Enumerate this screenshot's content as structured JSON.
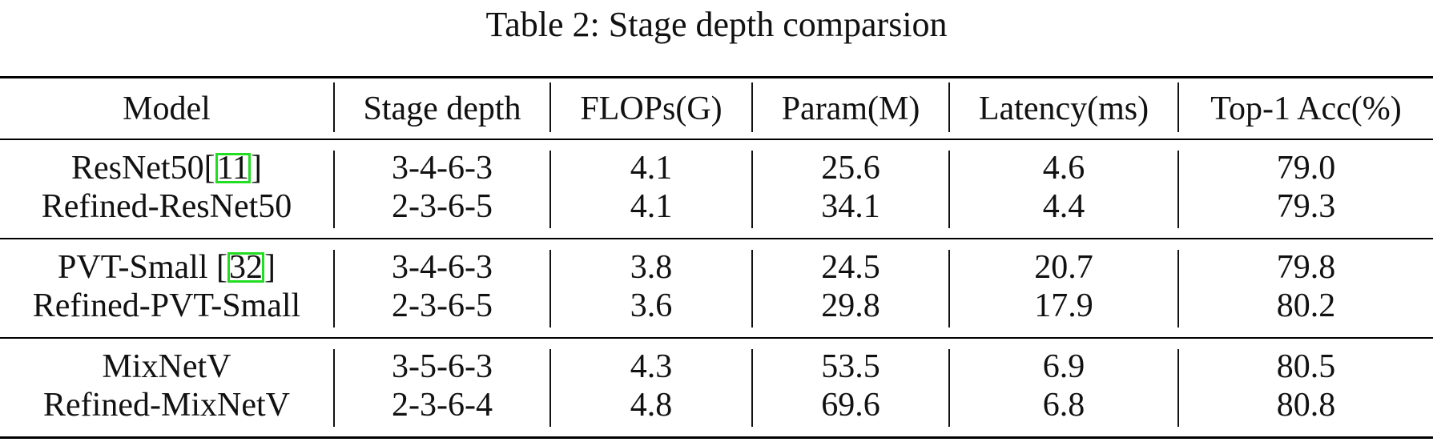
{
  "caption": "Table 2: Stage depth comparsion",
  "table": {
    "headers": [
      "Model",
      "Stage depth",
      "FLOPs(G)",
      "Param(M)",
      "Latency(ms)",
      "Top-1 Acc(%)"
    ],
    "groups": [
      {
        "rows": [
          {
            "model": "ResNet50",
            "cite": "11",
            "cite_open": "[",
            "cite_close": "]",
            "stage_depth": "3-4-6-3",
            "flops": "4.1",
            "params": "25.6",
            "latency": "4.6",
            "acc": "79.0"
          },
          {
            "model": "Refined-ResNet50",
            "stage_depth": "2-3-6-5",
            "flops": "4.1",
            "params": "34.1",
            "latency": "4.4",
            "acc": "79.3"
          }
        ]
      },
      {
        "rows": [
          {
            "model": "PVT-Small ",
            "cite": "32",
            "cite_open": "[",
            "cite_close": "]",
            "stage_depth": "3-4-6-3",
            "flops": "3.8",
            "params": "24.5",
            "latency": "20.7",
            "acc": "79.8"
          },
          {
            "model": "Refined-PVT-Small",
            "stage_depth": "2-3-6-5",
            "flops": "3.6",
            "params": "29.8",
            "latency": "17.9",
            "acc": "80.2"
          }
        ]
      },
      {
        "rows": [
          {
            "model": "MixNetV",
            "stage_depth": "3-5-6-3",
            "flops": "4.3",
            "params": "53.5",
            "latency": "6.9",
            "acc": "80.5"
          },
          {
            "model": "Refined-MixNetV",
            "stage_depth": "2-3-6-4",
            "flops": "4.8",
            "params": "69.6",
            "latency": "6.8",
            "acc": "80.8"
          }
        ]
      }
    ]
  },
  "colors": {
    "rule": "#000000",
    "text": "#111111",
    "citation_box": "#22dd22"
  }
}
